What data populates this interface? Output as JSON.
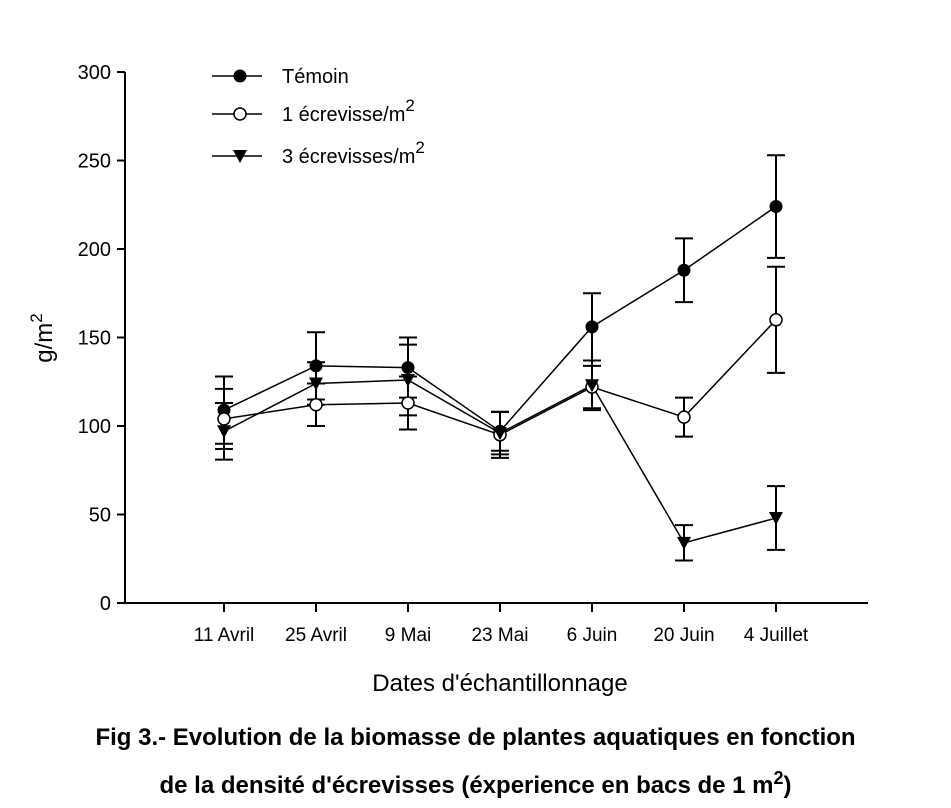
{
  "chart_data": {
    "type": "line",
    "categories": [
      "11 Avril",
      "25 Avril",
      "9 Mai",
      "23 Mai",
      "6 Juin",
      "20 Juin",
      "4 Juillet"
    ],
    "xlabel": "Dates d'échantillonnage",
    "ylabel": "g/m",
    "ylabel_sup": "2",
    "ylim": [
      0,
      300
    ],
    "yticks": [
      0,
      50,
      100,
      150,
      200,
      250,
      300
    ],
    "legend_position": "top-left",
    "series": [
      {
        "name": "Témoin",
        "name_sup": "",
        "marker": "filled-circle",
        "values": [
          109,
          134,
          133,
          97,
          156,
          188,
          224
        ],
        "errors": [
          19,
          19,
          17,
          11,
          19,
          18,
          29
        ]
      },
      {
        "name": "1 écrevisse/m",
        "name_sup": "2",
        "marker": "open-circle",
        "values": [
          104,
          112,
          113,
          95,
          122,
          105,
          160
        ],
        "errors": [
          17,
          12,
          15,
          13,
          12,
          11,
          30
        ]
      },
      {
        "name": "3 écrevisses/m",
        "name_sup": "2",
        "marker": "filled-triangle-down",
        "values": [
          97,
          124,
          126,
          96,
          123,
          34,
          48
        ],
        "errors": [
          16,
          12,
          20,
          12,
          14,
          10,
          18
        ]
      }
    ]
  },
  "caption": {
    "line1": "Fig 3.- Evolution de la biomasse  de plantes aquatiques en fonction",
    "line2": "de la densité d'écrevisses (éxperience en bacs de 1 m",
    "line2_sup": "2",
    "line2_end": ")"
  }
}
